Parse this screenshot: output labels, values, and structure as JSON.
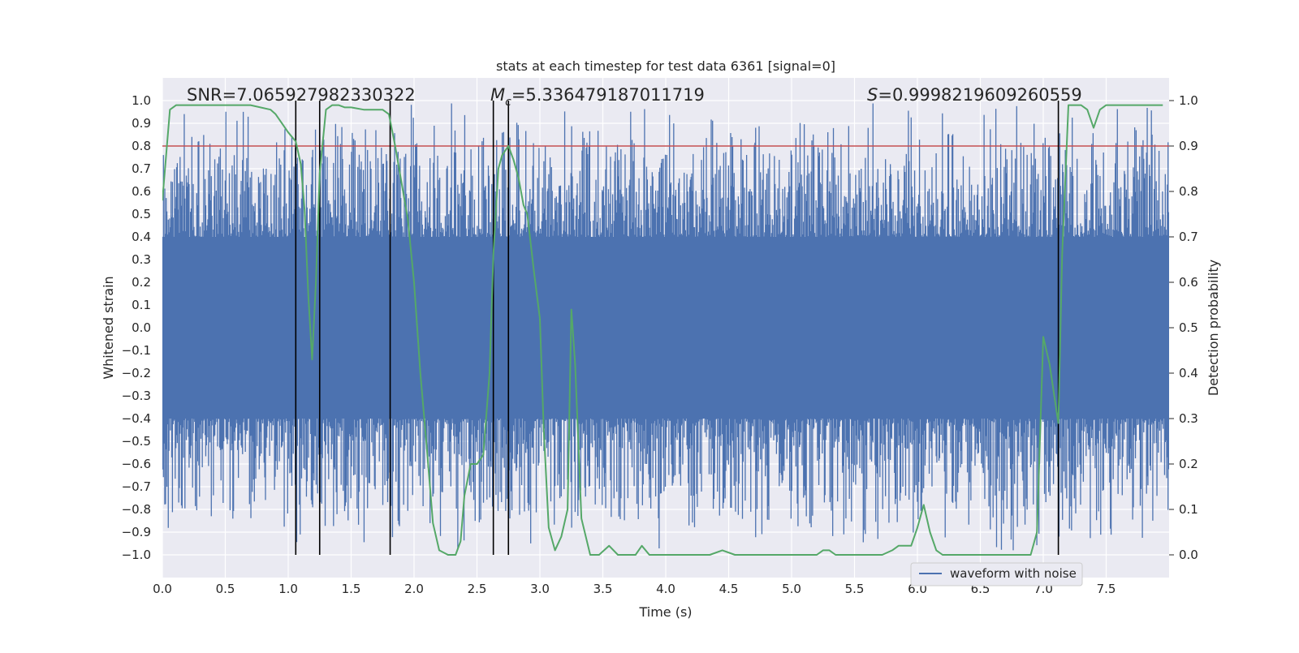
{
  "chart_data": {
    "type": "line",
    "title": "stats at each timestep for test data 6361 [signal=0]",
    "xlabel": "Time (s)",
    "ylabel": "Whitened strain",
    "y2label": "Detection probability",
    "xlim": [
      0.0,
      8.0
    ],
    "ylim": [
      -1.1,
      1.1
    ],
    "y2lim": [
      -0.05,
      1.05
    ],
    "x_ticks": [
      0.0,
      0.5,
      1.0,
      1.5,
      2.0,
      2.5,
      3.0,
      3.5,
      4.0,
      4.5,
      5.0,
      5.5,
      6.0,
      6.5,
      7.0,
      7.5
    ],
    "x_tick_labels": [
      "0.0",
      "0.5",
      "1.0",
      "1.5",
      "2.0",
      "2.5",
      "3.0",
      "3.5",
      "4.0",
      "4.5",
      "5.0",
      "5.5",
      "6.0",
      "6.5",
      "7.0",
      "7.5"
    ],
    "y_ticks": [
      1.0,
      0.9,
      0.8,
      0.7,
      0.6,
      0.5,
      0.4,
      0.3,
      0.2,
      0.1,
      0.0,
      -0.1,
      -0.2,
      -0.3,
      -0.4,
      -0.5,
      -0.6,
      -0.7,
      -0.8,
      -0.9,
      -1.0
    ],
    "y_tick_labels": [
      "1.0",
      "0.9",
      "0.8",
      "0.7",
      "0.6",
      "0.5",
      "0.4",
      "0.3",
      "0.2",
      "0.1",
      "0.0",
      "−0.1",
      "−0.2",
      "−0.3",
      "−0.4",
      "−0.5",
      "−0.6",
      "−0.7",
      "−0.8",
      "−0.9",
      "−1.0"
    ],
    "y2_ticks": [
      1.0,
      0.9,
      0.8,
      0.7,
      0.6,
      0.5,
      0.4,
      0.3,
      0.2,
      0.1,
      0.0
    ],
    "y2_tick_labels": [
      "1.0",
      "0.9",
      "0.8",
      "0.7",
      "0.6",
      "0.5",
      "0.4",
      "0.3",
      "0.2",
      "0.1",
      "0.0"
    ],
    "grid": true,
    "annotations": {
      "snr": "SNR=7.065927982330322",
      "mc_symbol": "M",
      "mc_subscript": "c",
      "mc_value": "=5.336479187011719",
      "s_symbol": "S",
      "s_value": "=0.9998219609260559"
    },
    "threshold": {
      "y2": 0.9,
      "color": "#c44e52"
    },
    "vertical_lines_x": [
      1.06,
      1.25,
      1.81,
      2.63,
      2.75,
      7.12
    ],
    "waveform": {
      "name": "waveform with noise",
      "color": "#4c72b0",
      "core_amplitude": 0.4,
      "peak_amplitude_max": 1.0
    },
    "probability_series": {
      "name": "Detection probability",
      "color": "#55a868",
      "x": [
        0.0,
        0.06,
        0.11,
        0.2,
        0.3,
        0.5,
        0.7,
        0.86,
        0.9,
        1.0,
        1.06,
        1.1,
        1.13,
        1.16,
        1.19,
        1.22,
        1.25,
        1.3,
        1.35,
        1.4,
        1.45,
        1.5,
        1.6,
        1.7,
        1.75,
        1.8,
        1.85,
        1.9,
        1.95,
        2.0,
        2.05,
        2.1,
        2.15,
        2.2,
        2.27,
        2.33,
        2.37,
        2.4,
        2.45,
        2.5,
        2.55,
        2.6,
        2.63,
        2.67,
        2.7,
        2.75,
        2.79,
        2.83,
        2.87,
        2.9,
        2.95,
        3.0,
        3.03,
        3.07,
        3.12,
        3.17,
        3.22,
        3.25,
        3.28,
        3.33,
        3.4,
        3.47,
        3.55,
        3.62,
        3.7,
        3.76,
        3.81,
        3.87,
        3.94,
        4.05,
        4.2,
        4.35,
        4.45,
        4.55,
        4.65,
        4.75,
        4.85,
        5.0,
        5.15,
        5.2,
        5.25,
        5.3,
        5.35,
        5.45,
        5.55,
        5.65,
        5.72,
        5.8,
        5.85,
        5.9,
        5.95,
        6.0,
        6.05,
        6.1,
        6.15,
        6.2,
        6.3,
        6.5,
        6.7,
        6.85,
        6.9,
        6.95,
        7.0,
        7.05,
        7.12,
        7.15,
        7.2,
        7.25,
        7.3,
        7.35,
        7.4,
        7.45,
        7.5,
        7.6,
        7.8,
        7.95
      ],
      "y": [
        0.78,
        0.98,
        0.99,
        0.99,
        0.99,
        0.99,
        0.99,
        0.98,
        0.97,
        0.93,
        0.91,
        0.86,
        0.76,
        0.57,
        0.43,
        0.6,
        0.84,
        0.98,
        0.99,
        0.99,
        0.985,
        0.985,
        0.98,
        0.98,
        0.98,
        0.97,
        0.9,
        0.82,
        0.74,
        0.6,
        0.4,
        0.24,
        0.07,
        0.01,
        0.0,
        0.0,
        0.03,
        0.13,
        0.2,
        0.2,
        0.22,
        0.4,
        0.66,
        0.85,
        0.88,
        0.9,
        0.87,
        0.83,
        0.77,
        0.75,
        0.63,
        0.52,
        0.28,
        0.06,
        0.01,
        0.04,
        0.1,
        0.54,
        0.42,
        0.08,
        0.0,
        0.0,
        0.02,
        0.0,
        0.0,
        0.0,
        0.02,
        0.0,
        0.0,
        0.0,
        0.0,
        0.0,
        0.01,
        0.0,
        0.0,
        0.0,
        0.0,
        0.0,
        0.0,
        0.0,
        0.01,
        0.01,
        0.0,
        0.0,
        0.0,
        0.0,
        0.0,
        0.01,
        0.02,
        0.02,
        0.02,
        0.06,
        0.11,
        0.05,
        0.01,
        0.0,
        0.0,
        0.0,
        0.0,
        0.0,
        0.0,
        0.05,
        0.48,
        0.42,
        0.29,
        0.66,
        0.99,
        0.99,
        0.99,
        0.98,
        0.94,
        0.98,
        0.99,
        0.99,
        0.99,
        0.99
      ]
    },
    "legend": {
      "entries": [
        "waveform with noise"
      ],
      "placement": "bottom-right"
    }
  }
}
